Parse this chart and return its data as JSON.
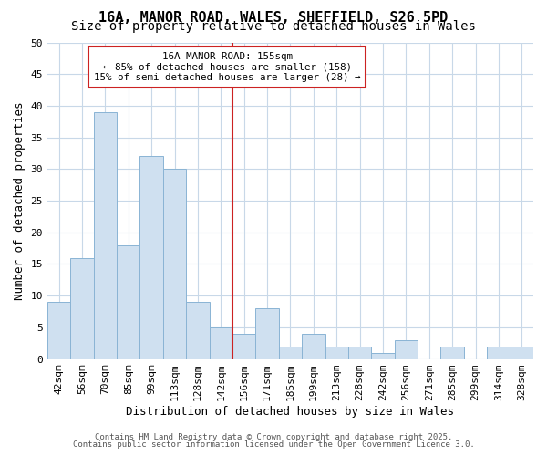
{
  "title1": "16A, MANOR ROAD, WALES, SHEFFIELD, S26 5PD",
  "title2": "Size of property relative to detached houses in Wales",
  "xlabel": "Distribution of detached houses by size in Wales",
  "ylabel": "Number of detached properties",
  "categories": [
    "42sqm",
    "56sqm",
    "70sqm",
    "85sqm",
    "99sqm",
    "113sqm",
    "128sqm",
    "142sqm",
    "156sqm",
    "171sqm",
    "185sqm",
    "199sqm",
    "213sqm",
    "228sqm",
    "242sqm",
    "256sqm",
    "271sqm",
    "285sqm",
    "299sqm",
    "314sqm",
    "328sqm"
  ],
  "values": [
    9,
    16,
    39,
    18,
    32,
    30,
    9,
    5,
    4,
    8,
    2,
    4,
    2,
    2,
    1,
    3,
    0,
    2,
    0,
    2,
    2
  ],
  "bar_color": "#cfe0f0",
  "bar_edge_color": "#8ab4d4",
  "vline_x_idx": 8,
  "vline_color": "#cc2222",
  "annotation_text": "16A MANOR ROAD: 155sqm\n← 85% of detached houses are smaller (158)\n15% of semi-detached houses are larger (28) →",
  "annotation_box_color": "#cc2222",
  "annotation_bg": "#ffffff",
  "ylim": [
    0,
    50
  ],
  "yticks": [
    0,
    5,
    10,
    15,
    20,
    25,
    30,
    35,
    40,
    45,
    50
  ],
  "grid_color": "#c8d8e8",
  "title1_fontsize": 11,
  "title2_fontsize": 10,
  "tick_fontsize": 8,
  "ylabel_fontsize": 9,
  "xlabel_fontsize": 9,
  "footer1": "Contains HM Land Registry data © Crown copyright and database right 2025.",
  "footer2": "Contains public sector information licensed under the Open Government Licence 3.0.",
  "bg_color": "#ffffff"
}
